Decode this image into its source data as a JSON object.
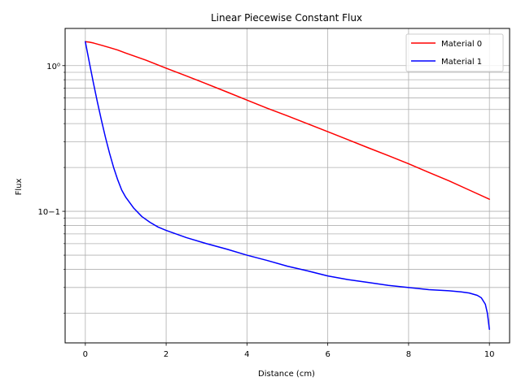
{
  "chart_data": {
    "type": "line",
    "title": "Linear Piecewise Constant Flux",
    "xlabel": "Distance (cm)",
    "ylabel": "Flux",
    "xlim": [
      -0.5,
      10.5
    ],
    "ylim": [
      0.0125,
      1.8
    ],
    "yscale": "log",
    "grid": true,
    "legend_position": "upper right",
    "x_ticks": [
      0,
      2,
      4,
      6,
      8,
      10
    ],
    "x_tick_labels": [
      "0",
      "2",
      "4",
      "6",
      "8",
      "10"
    ],
    "y_major_ticks": [
      0.1,
      1
    ],
    "y_major_tick_labels": [
      "10−1",
      "10⁰"
    ],
    "y_minor_ticks": [
      0.02,
      0.03,
      0.04,
      0.05,
      0.06,
      0.07,
      0.08,
      0.09,
      0.2,
      0.3,
      0.4,
      0.5,
      0.6,
      0.7,
      0.8,
      0.9
    ],
    "series": [
      {
        "name": "Material 0",
        "color": "#ff0000",
        "x": [
          0,
          0.1,
          0.2,
          0.4,
          0.6,
          0.8,
          1.0,
          1.5,
          2.0,
          2.5,
          3.0,
          3.5,
          4.0,
          4.5,
          5.0,
          5.5,
          6.0,
          6.5,
          7.0,
          7.5,
          8.0,
          8.5,
          9.0,
          9.5,
          10.0
        ],
        "y": [
          1.46,
          1.45,
          1.43,
          1.38,
          1.33,
          1.28,
          1.22,
          1.09,
          0.96,
          0.85,
          0.75,
          0.66,
          0.58,
          0.51,
          0.452,
          0.399,
          0.352,
          0.31,
          0.273,
          0.241,
          0.212,
          0.185,
          0.162,
          0.14,
          0.121
        ]
      },
      {
        "name": "Material 1",
        "color": "#0000ff",
        "x": [
          0,
          0.1,
          0.2,
          0.3,
          0.4,
          0.5,
          0.6,
          0.7,
          0.8,
          0.9,
          1.0,
          1.2,
          1.4,
          1.6,
          1.8,
          2.0,
          2.5,
          3.0,
          3.5,
          4.0,
          4.5,
          5.0,
          5.5,
          6.0,
          6.5,
          7.0,
          7.5,
          8.0,
          8.5,
          9.0,
          9.3,
          9.5,
          9.7,
          9.8,
          9.9,
          9.95,
          10.0
        ],
        "y": [
          1.46,
          1.05,
          0.76,
          0.56,
          0.42,
          0.32,
          0.25,
          0.2,
          0.165,
          0.14,
          0.125,
          0.105,
          0.092,
          0.084,
          0.078,
          0.074,
          0.066,
          0.06,
          0.055,
          0.05,
          0.046,
          0.042,
          0.039,
          0.036,
          0.034,
          0.0325,
          0.031,
          0.03,
          0.029,
          0.0285,
          0.028,
          0.0275,
          0.0265,
          0.0255,
          0.023,
          0.02,
          0.0155
        ]
      }
    ]
  }
}
